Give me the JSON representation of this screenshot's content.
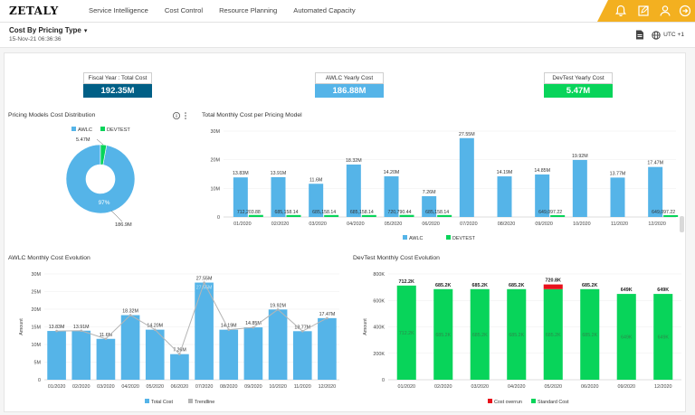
{
  "brand": {
    "logo": "ZETALY",
    "accent": "#f3b020"
  },
  "nav": [
    "Service Intelligence",
    "Cost Control",
    "Resource Planning",
    "Automated Capacity"
  ],
  "header_icons": [
    "bell-icon",
    "edit-icon",
    "user-icon",
    "logout-icon"
  ],
  "page": {
    "title": "Cost By Pricing Type",
    "date": "15-Nov-21 06:36:36",
    "timezone": "UTC +1"
  },
  "kpis": [
    {
      "label": "Fiscal Year : Total Cost",
      "value": "192.35M",
      "color": "#005f86"
    },
    {
      "label": "AWLC Yearly Cost",
      "value": "186.88M",
      "color": "#55b4e8"
    },
    {
      "label": "DevTest Yearly Cost",
      "value": "5.47M",
      "color": "#08d45a"
    }
  ],
  "colors": {
    "awlc": "#55b4e8",
    "devtest": "#08d45a",
    "overrun": "#e8111b",
    "trend": "#b5b5b5"
  },
  "charts": {
    "pie": {
      "title": "Pricing Models Cost Distribution",
      "chart_data": {
        "type": "pie",
        "title": "Pricing Models Cost Distribution",
        "legend": [
          "AWLC",
          "DEVTEST"
        ],
        "legend_position": "top",
        "slices": [
          {
            "name": "AWLC",
            "value": 186.9,
            "label": "186.9M",
            "inner_label": "97%"
          },
          {
            "name": "DEVTEST",
            "value": 5.47,
            "label": "5.47M"
          }
        ]
      }
    },
    "monthly": {
      "title": "Total Monthly Cost per Pricing Model",
      "chart_data": {
        "type": "bar",
        "title": "Total Monthly Cost per Pricing Model",
        "categories": [
          "01/2020",
          "02/2020",
          "03/2020",
          "04/2020",
          "05/2020",
          "06/2020",
          "07/2020",
          "08/2020",
          "09/2020",
          "10/2020",
          "11/2020",
          "12/2020"
        ],
        "yticks": [
          "0",
          "10M",
          "20M",
          "30M"
        ],
        "ylim": [
          0,
          30000000
        ],
        "legend": [
          "AWLC",
          "DEVTEST"
        ],
        "legend_position": "bottom",
        "series": [
          {
            "name": "AWLC",
            "values": [
              13830000,
              13910000,
              11600000,
              18320000,
              14200000,
              7260000,
              27550000,
              14190000,
              14850000,
              19920000,
              13770000,
              17470000
            ],
            "labels": [
              "13.83M",
              "13.91M",
              "11.6M",
              "18.32M",
              "14.20M",
              "7.26M",
              "27.55M",
              "14.19M",
              "14.85M",
              "19.92M",
              "13.77M",
              "17.47M"
            ]
          },
          {
            "name": "DEVTEST",
            "values": [
              712203.88,
              685158.14,
              685158.14,
              685158.14,
              720790.44,
              685158.14,
              0,
              0,
              649097.22,
              0,
              0,
              649097.22
            ],
            "labels": [
              "712,203.88",
              "685,158.14",
              "685,158.14",
              "685,158.14",
              "720,790.44",
              "685,158.14",
              "",
              "",
              "649,097.22",
              "",
              "",
              "649,097.22"
            ]
          }
        ]
      }
    },
    "awlc": {
      "title": "AWLC Monthly Cost Evolution",
      "chart_data": {
        "type": "bar",
        "title": "AWLC Monthly Cost Evolution",
        "ylabel": "Amount",
        "categories": [
          "01/2020",
          "02/2020",
          "03/2020",
          "04/2020",
          "05/2020",
          "06/2020",
          "07/2020",
          "08/2020",
          "09/2020",
          "10/2020",
          "11/2020",
          "12/2020"
        ],
        "yticks": [
          "0",
          "5M",
          "10M",
          "15M",
          "20M",
          "25M",
          "30M"
        ],
        "ylim": [
          0,
          30000000
        ],
        "legend": [
          "Total Cost",
          "Trendline"
        ],
        "legend_position": "bottom",
        "series": [
          {
            "name": "Total Cost",
            "values": [
              13830000,
              13910000,
              11600000,
              18320000,
              14200000,
              7260000,
              27550000,
              14190000,
              14850000,
              19920000,
              13770000,
              17470000
            ],
            "labels": [
              "13.83M",
              "13.91M",
              "11.6M",
              "18.32M",
              "14.20M",
              "7.26M",
              "27.55M",
              "14.19M",
              "14.85M",
              "19.92M",
              "13.77M",
              "17.47M"
            ]
          },
          {
            "name": "Trendline",
            "values": [
              13830000,
              13910000,
              11600000,
              18320000,
              14200000,
              7260000,
              27550000,
              14190000,
              14850000,
              19920000,
              13770000,
              17470000
            ]
          }
        ],
        "inner_label_07": "27.55M"
      }
    },
    "devtest": {
      "title": "DevTest Monthly Cost Evolution",
      "chart_data": {
        "type": "bar",
        "title": "DevTest Monthly Cost Evolution",
        "ylabel": "Amount",
        "categories": [
          "01/2020",
          "02/2020",
          "03/2020",
          "04/2020",
          "05/2020",
          "06/2020",
          "09/2020",
          "12/2020"
        ],
        "yticks": [
          "0",
          "200K",
          "400K",
          "600K",
          "800K"
        ],
        "ylim": [
          0,
          800000
        ],
        "legend": [
          "Cost overrun",
          "Standard Cost"
        ],
        "legend_position": "bottom",
        "series": [
          {
            "name": "Standard Cost",
            "values": [
              712200,
              685200,
              685200,
              685200,
              685200,
              685200,
              649000,
              649000
            ],
            "labels": [
              "712.2K",
              "685.2K",
              "685.2K",
              "685.2K",
              "685.2K",
              "685.2K",
              "649K",
              "649K"
            ]
          },
          {
            "name": "Cost overrun",
            "values": [
              0,
              0,
              0,
              0,
              35600,
              0,
              0,
              0
            ]
          }
        ],
        "top_labels": [
          "712.2K",
          "685.2K",
          "685.2K",
          "685.2K",
          "720.8K",
          "685.2K",
          "649K",
          "649K"
        ]
      }
    }
  }
}
